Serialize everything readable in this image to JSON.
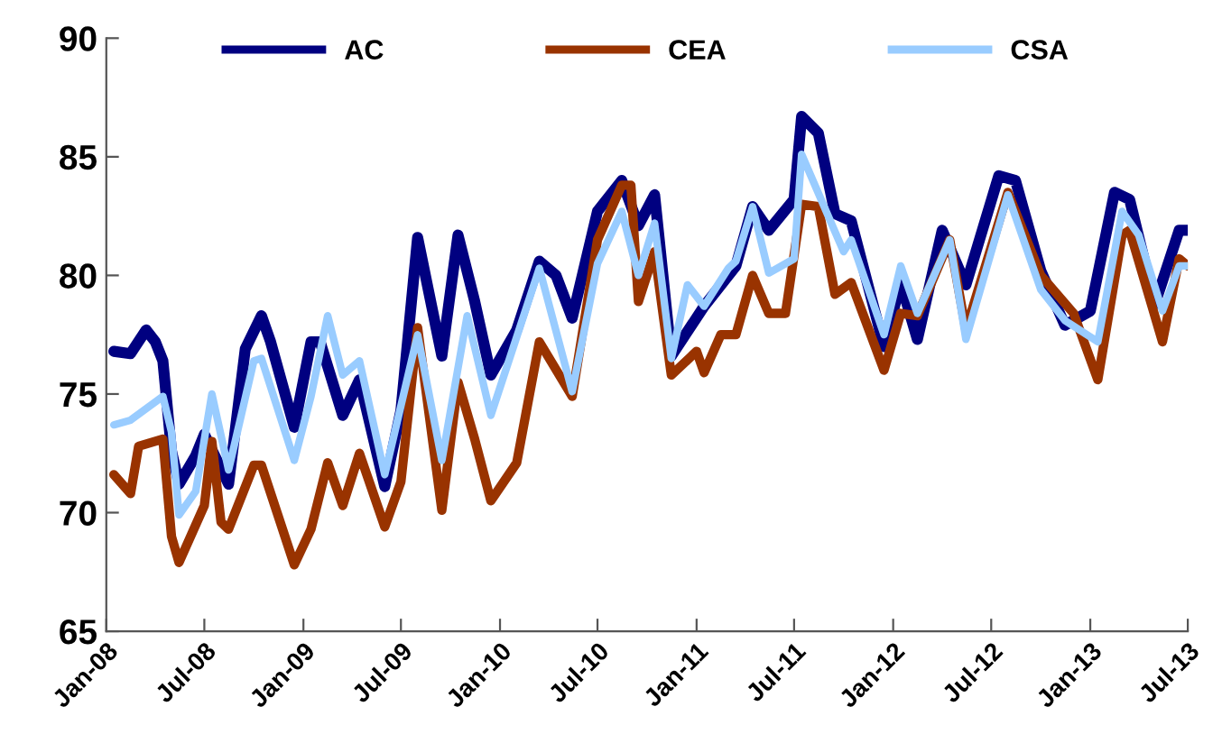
{
  "chart_data": {
    "type": "line",
    "xlim": [
      "2008-01-01",
      "2013-07-01"
    ],
    "xticks": [
      {
        "value": "2008-01-01",
        "label": "Jan-08"
      },
      {
        "value": "2008-07-01",
        "label": "Jul-08"
      },
      {
        "value": "2009-01-01",
        "label": "Jan-09"
      },
      {
        "value": "2009-07-01",
        "label": "Jul-09"
      },
      {
        "value": "2010-01-01",
        "label": "Jan-10"
      },
      {
        "value": "2010-07-01",
        "label": "Jul-10"
      },
      {
        "value": "2011-01-01",
        "label": "Jan-11"
      },
      {
        "value": "2011-07-01",
        "label": "Jul-11"
      },
      {
        "value": "2012-01-01",
        "label": "Jan-12"
      },
      {
        "value": "2012-07-01",
        "label": "Jul-12"
      },
      {
        "value": "2013-01-01",
        "label": "Jan-13"
      },
      {
        "value": "2013-07-01",
        "label": "Jul-13"
      }
    ],
    "ylim": [
      65,
      90
    ],
    "yticks": [
      65,
      70,
      75,
      80,
      85,
      90
    ],
    "grid": false,
    "legend": "top",
    "marker": "none",
    "line_style": "solid",
    "series": [
      {
        "name": "AC",
        "color": "#000080",
        "x": [
          "2008-01-15",
          "2008-02-15",
          "2008-03-15",
          "2008-04-01",
          "2008-04-15",
          "2008-05-01",
          "2008-05-15",
          "2008-06-15",
          "2008-07-01",
          "2008-08-15",
          "2008-09-15",
          "2008-10-15",
          "2008-11-01",
          "2008-12-15",
          "2009-01-15",
          "2009-02-01",
          "2009-03-15",
          "2009-04-15",
          "2009-06-01",
          "2009-07-01",
          "2009-08-01",
          "2009-09-15",
          "2009-10-15",
          "2009-11-15",
          "2009-12-15",
          "2010-02-01",
          "2010-03-15",
          "2010-04-15",
          "2010-05-15",
          "2010-07-01",
          "2010-08-15",
          "2010-09-15",
          "2010-10-15",
          "2010-11-15",
          "2011-01-15",
          "2011-03-15",
          "2011-04-15",
          "2011-05-15",
          "2011-07-01",
          "2011-07-15",
          "2011-08-15",
          "2011-09-15",
          "2011-10-15",
          "2011-12-15",
          "2012-01-15",
          "2012-02-15",
          "2012-04-01",
          "2012-05-15",
          "2012-07-15",
          "2012-08-15",
          "2012-10-01",
          "2012-11-15",
          "2013-01-01",
          "2013-02-15",
          "2013-03-15",
          "2013-05-01",
          "2013-06-15",
          "2013-07-01"
        ],
        "values": [
          76.8,
          76.7,
          77.7,
          77.2,
          76.4,
          72.6,
          71.2,
          72.4,
          73.3,
          71.2,
          76.9,
          78.3,
          77.2,
          73.6,
          77.2,
          77.2,
          74.1,
          75.6,
          71.1,
          74.3,
          81.6,
          76.6,
          81.7,
          78.9,
          75.8,
          77.7,
          80.6,
          80.0,
          78.2,
          82.7,
          84.0,
          82.1,
          83.4,
          76.6,
          78.7,
          80.4,
          82.9,
          81.9,
          83.2,
          86.7,
          86.0,
          82.6,
          82.3,
          77.0,
          79.7,
          77.3,
          81.9,
          79.6,
          84.2,
          84.0,
          80.2,
          77.9,
          78.5,
          83.5,
          83.2,
          78.8,
          81.9,
          81.9
        ]
      },
      {
        "name": "CEA",
        "color": "#993300",
        "x": [
          "2008-01-15",
          "2008-02-15",
          "2008-03-01",
          "2008-04-15",
          "2008-05-01",
          "2008-05-15",
          "2008-07-01",
          "2008-07-15",
          "2008-08-01",
          "2008-08-15",
          "2008-10-01",
          "2008-10-15",
          "2008-12-15",
          "2009-01-15",
          "2009-02-15",
          "2009-03-15",
          "2009-04-15",
          "2009-06-01",
          "2009-07-01",
          "2009-08-01",
          "2009-09-15",
          "2009-10-15",
          "2009-11-15",
          "2009-12-15",
          "2010-02-01",
          "2010-03-15",
          "2010-05-15",
          "2010-07-01",
          "2010-08-15",
          "2010-09-01",
          "2010-09-15",
          "2010-10-15",
          "2010-11-15",
          "2011-01-01",
          "2011-01-15",
          "2011-02-15",
          "2011-03-15",
          "2011-04-15",
          "2011-05-15",
          "2011-06-15",
          "2011-07-15",
          "2011-08-15",
          "2011-09-15",
          "2011-10-15",
          "2011-12-15",
          "2012-01-15",
          "2012-02-15",
          "2012-04-15",
          "2012-05-15",
          "2012-08-01",
          "2012-10-01",
          "2012-12-01",
          "2013-01-15",
          "2013-03-01",
          "2013-03-15",
          "2013-05-15",
          "2013-06-15",
          "2013-07-01"
        ],
        "values": [
          71.6,
          70.8,
          72.8,
          73.1,
          69.0,
          67.9,
          70.3,
          73.0,
          69.6,
          69.3,
          72.0,
          72.0,
          67.8,
          69.3,
          72.1,
          70.3,
          72.5,
          69.4,
          71.3,
          77.8,
          70.1,
          75.5,
          73.1,
          70.5,
          72.1,
          77.2,
          74.9,
          81.5,
          83.8,
          83.8,
          78.9,
          81.0,
          75.8,
          76.8,
          75.9,
          77.5,
          77.5,
          80.0,
          78.4,
          78.4,
          83.0,
          82.9,
          79.2,
          79.7,
          76.0,
          78.4,
          78.3,
          81.5,
          77.7,
          83.5,
          80.0,
          78.4,
          75.6,
          81.7,
          81.9,
          77.2,
          80.7,
          80.4
        ]
      },
      {
        "name": "CSA",
        "color": "#99ccff",
        "x": [
          "2008-01-15",
          "2008-02-15",
          "2008-04-15",
          "2008-05-01",
          "2008-05-15",
          "2008-06-15",
          "2008-07-15",
          "2008-08-15",
          "2008-10-01",
          "2008-10-15",
          "2008-12-15",
          "2009-01-15",
          "2009-02-15",
          "2009-03-15",
          "2009-04-15",
          "2009-06-01",
          "2009-08-01",
          "2009-09-15",
          "2009-11-01",
          "2009-12-15",
          "2010-03-15",
          "2010-05-15",
          "2010-07-01",
          "2010-08-15",
          "2010-09-15",
          "2010-10-15",
          "2010-11-15",
          "2010-12-15",
          "2011-01-15",
          "2011-03-01",
          "2011-03-15",
          "2011-04-15",
          "2011-05-15",
          "2011-07-01",
          "2011-07-15",
          "2011-10-01",
          "2011-10-15",
          "2011-12-15",
          "2012-01-15",
          "2012-02-15",
          "2012-04-15",
          "2012-05-15",
          "2012-08-01",
          "2012-10-01",
          "2012-11-15",
          "2013-01-15",
          "2013-03-01",
          "2013-04-01",
          "2013-05-15",
          "2013-06-15",
          "2013-07-01"
        ],
        "values": [
          73.7,
          73.9,
          74.9,
          73.4,
          69.9,
          70.9,
          75.0,
          71.8,
          76.4,
          76.5,
          72.2,
          74.9,
          78.3,
          75.8,
          76.4,
          71.6,
          77.5,
          72.2,
          78.3,
          74.1,
          80.3,
          75.1,
          80.5,
          82.7,
          80.0,
          82.2,
          76.5,
          79.6,
          78.7,
          80.3,
          80.6,
          82.9,
          80.1,
          80.7,
          85.1,
          81.0,
          81.5,
          77.5,
          80.4,
          78.4,
          81.5,
          77.3,
          83.4,
          79.4,
          78.1,
          77.2,
          82.7,
          81.7,
          78.5,
          80.4,
          80.4
        ]
      }
    ]
  }
}
